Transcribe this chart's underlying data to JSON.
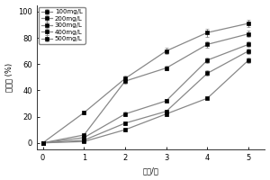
{
  "x": [
    0,
    1,
    2,
    3,
    4,
    5
  ],
  "series": {
    "100mg/L": {
      "y": [
        0,
        1.0,
        10,
        22,
        34,
        63
      ],
      "yerr": [
        0,
        0.5,
        1.0,
        1.5,
        1.5,
        2.0
      ]
    },
    "200mg/L": {
      "y": [
        0,
        2.0,
        15,
        24,
        53,
        70
      ],
      "yerr": [
        0,
        0.5,
        1.2,
        1.5,
        2.0,
        2.0
      ]
    },
    "300mg/L": {
      "y": [
        0,
        4.0,
        22,
        32,
        63,
        75
      ],
      "yerr": [
        0,
        0.5,
        1.5,
        1.5,
        2.0,
        2.0
      ]
    },
    "400mg/L": {
      "y": [
        0,
        6.0,
        47,
        57,
        75,
        83
      ],
      "yerr": [
        0,
        0.5,
        2.0,
        2.0,
        2.5,
        2.5
      ]
    },
    "500mg/L": {
      "y": [
        0,
        23,
        49,
        70,
        84,
        91
      ],
      "yerr": [
        0,
        1.5,
        2.0,
        2.5,
        3.0,
        3.0
      ]
    }
  },
  "xlabel": "时间/时",
  "ylabel": "脱色率 (%)",
  "xlim": [
    -0.15,
    5.4
  ],
  "ylim": [
    -5,
    105
  ],
  "yticks": [
    0,
    20,
    40,
    60,
    80,
    100
  ],
  "xticks": [
    0,
    1,
    2,
    3,
    4,
    5
  ],
  "legend_order": [
    "100mg/L",
    "200mg/L",
    "300mg/L",
    "400mg/L",
    "500mg/L"
  ],
  "line_color": "#888888",
  "marker": "s",
  "markersize": 3.0,
  "linewidth": 0.9,
  "background_color": "#ffffff",
  "title": ""
}
